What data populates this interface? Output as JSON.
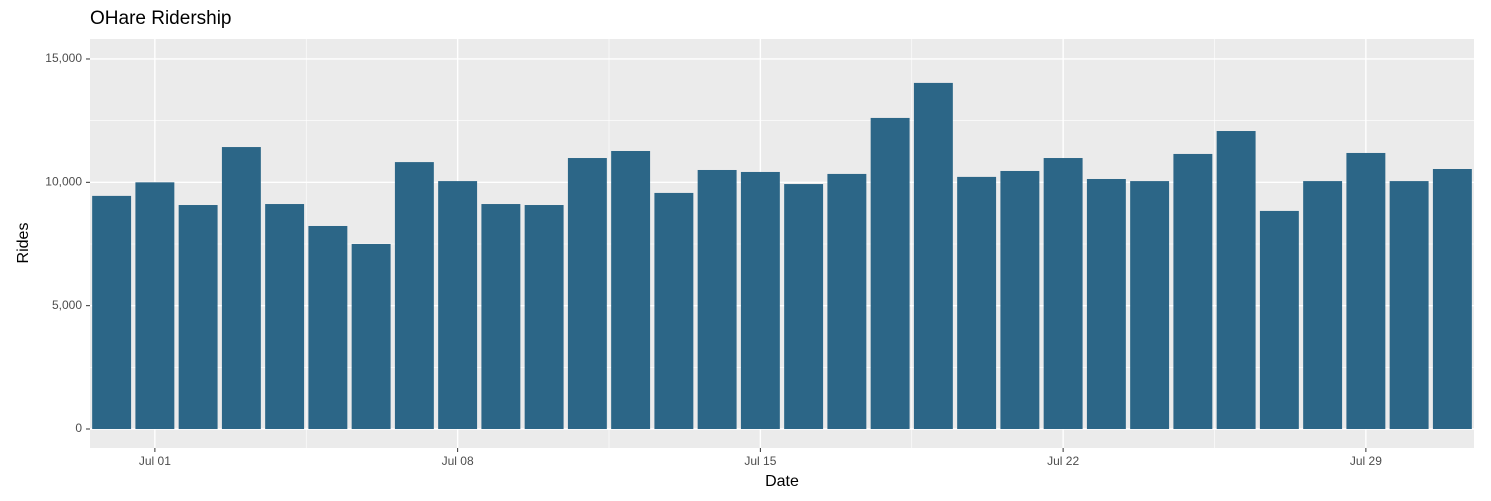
{
  "chart_data": {
    "type": "bar",
    "title": "OHare Ridership",
    "x_label": "Date",
    "y_label": "Rides",
    "categories": [
      null,
      "Jul 01",
      null,
      null,
      null,
      null,
      null,
      null,
      "Jul 08",
      null,
      null,
      null,
      null,
      null,
      null,
      "Jul 15",
      null,
      null,
      null,
      null,
      null,
      null,
      "Jul 22",
      null,
      null,
      null,
      null,
      null,
      null,
      "Jul 29",
      null,
      null
    ],
    "values": [
      9450,
      10000,
      9080,
      11430,
      9120,
      8230,
      7500,
      10820,
      10050,
      9120,
      9080,
      10985,
      11270,
      9570,
      10500,
      10420,
      9930,
      10340,
      12610,
      14030,
      10220,
      10460,
      10985,
      10135,
      10050,
      11150,
      12080,
      8840,
      10050,
      11190,
      10050,
      10540
    ],
    "color": "#2c6687",
    "ylim": [
      -770,
      15810
    ],
    "yticks": [
      0,
      {
        "value": 5000,
        "label": "5,000"
      },
      {
        "value": 10000,
        "label": "10,000"
      },
      {
        "value": 15000,
        "label": "15,000"
      }
    ],
    "grid": true
  }
}
